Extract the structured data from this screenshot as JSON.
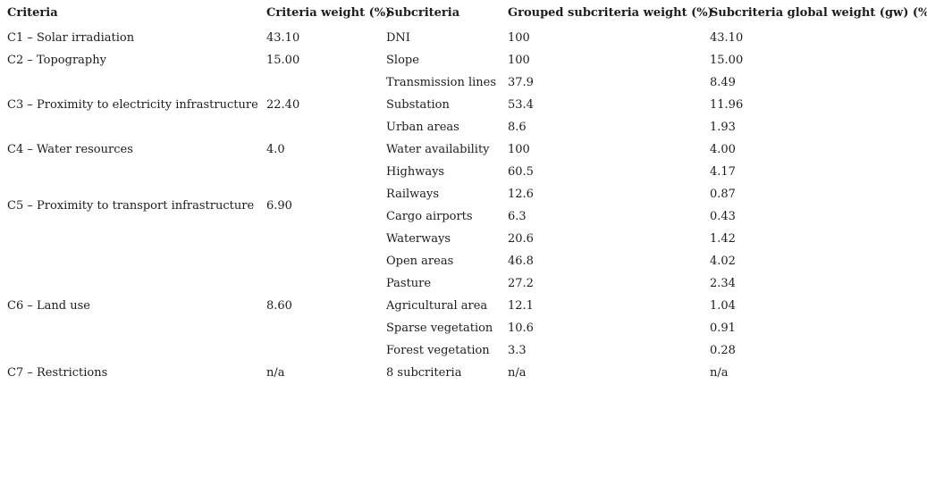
{
  "page": {
    "background_color": "#ffffff",
    "text_color": "#1c1c1c"
  },
  "table": {
    "columns": [
      "Criteria",
      "Criteria weight (%)",
      "Subcriteria",
      "Grouped subcriteria weight (%)",
      "Subcriteria global weight (gw) (%)"
    ],
    "groups": [
      {
        "criteria": "C1 – Solar irradiation",
        "weight": "43.10",
        "rows": [
          {
            "sub": "DNI",
            "grouped": "100",
            "global": "43.10"
          }
        ]
      },
      {
        "criteria": "C2 – Topography",
        "weight": "15.00",
        "rows": [
          {
            "sub": "Slope",
            "grouped": "100",
            "global": "15.00"
          }
        ]
      },
      {
        "criteria": "C3 – Proximity to electricity infrastructure",
        "weight": "22.40",
        "rows": [
          {
            "sub": "Transmission lines",
            "grouped": "37.9",
            "global": "8.49"
          },
          {
            "sub": "Substation",
            "grouped": "53.4",
            "global": "11.96"
          },
          {
            "sub": "Urban areas",
            "grouped": "8.6",
            "global": "1.93"
          }
        ]
      },
      {
        "criteria": "C4 – Water resources",
        "weight": "4.0",
        "rows": [
          {
            "sub": "Water availability",
            "grouped": "100",
            "global": "4.00"
          }
        ]
      },
      {
        "criteria": "C5 – Proximity to transport infrastructure",
        "weight": "6.90",
        "rows": [
          {
            "sub": "Highways",
            "grouped": "60.5",
            "global": "4.17"
          },
          {
            "sub": "Railways",
            "grouped": "12.6",
            "global": "0.87"
          },
          {
            "sub": "Cargo airports",
            "grouped": "6.3",
            "global": "0.43"
          },
          {
            "sub": "Waterways",
            "grouped": "20.6",
            "global": "1.42"
          }
        ]
      },
      {
        "criteria": "C6 – Land use",
        "weight": "8.60",
        "rows": [
          {
            "sub": "Open areas",
            "grouped": "46.8",
            "global": "4.02"
          },
          {
            "sub": "Pasture",
            "grouped": "27.2",
            "global": "2.34"
          },
          {
            "sub": "Agricultural area",
            "grouped": "12.1",
            "global": "1.04"
          },
          {
            "sub": "Sparse vegetation",
            "grouped": "10.6",
            "global": "0.91"
          },
          {
            "sub": "Forest vegetation",
            "grouped": "3.3",
            "global": "0.28"
          }
        ]
      },
      {
        "criteria": "C7 – Restrictions",
        "weight": "n/a",
        "rows": [
          {
            "sub": "8 subcriteria",
            "grouped": "n/a",
            "global": "n/a"
          }
        ]
      }
    ]
  }
}
